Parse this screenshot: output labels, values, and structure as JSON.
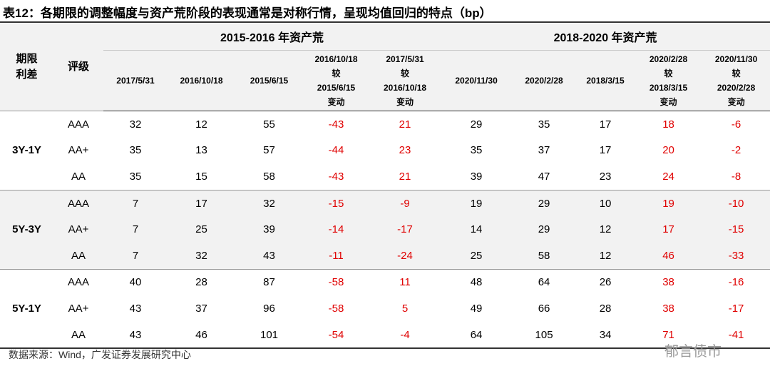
{
  "title": "表12：各期限的调整幅度与资产荒阶段的表现通常是对称行情，呈现均值回归的特点（bp）",
  "header": {
    "term": [
      "期限",
      "利差"
    ],
    "rating": "评级",
    "groups": [
      "2015-2016 年资产荒",
      "2018-2020 年资产荒"
    ],
    "columns": [
      [
        "2017/5/31"
      ],
      [
        "2016/10/18"
      ],
      [
        "2015/6/15"
      ],
      [
        "2016/10/18",
        "较",
        "2015/6/15",
        "变动"
      ],
      [
        "2017/5/31",
        "较",
        "2016/10/18",
        "变动"
      ],
      [
        "2020/11/30"
      ],
      [
        "2020/2/28"
      ],
      [
        "2018/3/15"
      ],
      [
        "2020/2/28",
        "较",
        "2018/3/15",
        "变动"
      ],
      [
        "2020/11/30",
        "较",
        "2020/2/28",
        "变动"
      ]
    ]
  },
  "table": {
    "groups": [
      {
        "term": "3Y-1Y",
        "rows": [
          {
            "rating": "AAA",
            "values": [
              32,
              12,
              55,
              -43,
              21,
              29,
              35,
              17,
              18,
              -6
            ]
          },
          {
            "rating": "AA+",
            "values": [
              35,
              13,
              57,
              -44,
              23,
              35,
              37,
              17,
              20,
              -2
            ]
          },
          {
            "rating": "AA",
            "values": [
              35,
              15,
              58,
              -43,
              21,
              39,
              47,
              23,
              24,
              -8
            ]
          }
        ]
      },
      {
        "term": "5Y-3Y",
        "rows": [
          {
            "rating": "AAA",
            "values": [
              7,
              17,
              32,
              -15,
              -9,
              19,
              29,
              10,
              19,
              -10
            ]
          },
          {
            "rating": "AA+",
            "values": [
              7,
              25,
              39,
              -14,
              -17,
              14,
              29,
              12,
              17,
              -15
            ]
          },
          {
            "rating": "AA",
            "values": [
              7,
              32,
              43,
              -11,
              -24,
              25,
              58,
              12,
              46,
              -33
            ]
          }
        ]
      },
      {
        "term": "5Y-1Y",
        "rows": [
          {
            "rating": "AAA",
            "values": [
              40,
              28,
              87,
              -58,
              11,
              48,
              64,
              26,
              38,
              -16
            ]
          },
          {
            "rating": "AA+",
            "values": [
              43,
              37,
              96,
              -58,
              5,
              49,
              66,
              28,
              38,
              -17
            ]
          },
          {
            "rating": "AA",
            "values": [
              43,
              46,
              101,
              -54,
              -4,
              64,
              105,
              34,
              71,
              -41
            ]
          }
        ]
      }
    ]
  },
  "source": "数据来源：Wind，广发证券发展研究中心",
  "watermark": "郁言债市"
}
